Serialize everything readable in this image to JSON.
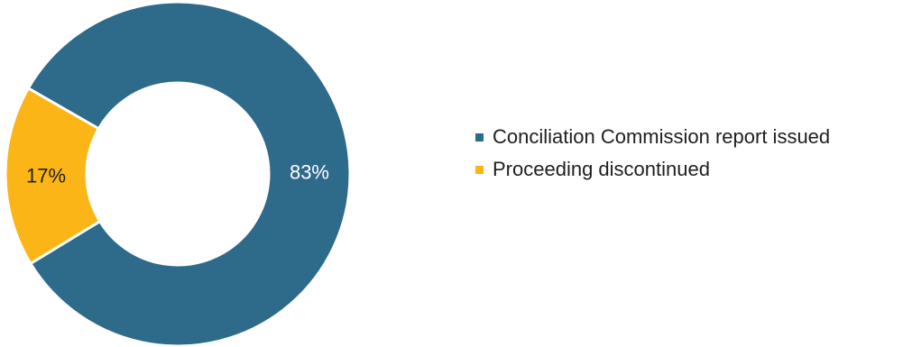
{
  "chart_data": {
    "type": "pie",
    "donut": true,
    "categories": [
      "Conciliation Commission report issued",
      "Proceeding discontinued"
    ],
    "values": [
      83,
      17
    ],
    "labels": [
      "83%",
      "17%"
    ],
    "colors": [
      "#2e6a8a",
      "#fbb516"
    ],
    "label_colors": [
      "#ffffff",
      "#1f1f1f"
    ],
    "legend_position": "right"
  }
}
